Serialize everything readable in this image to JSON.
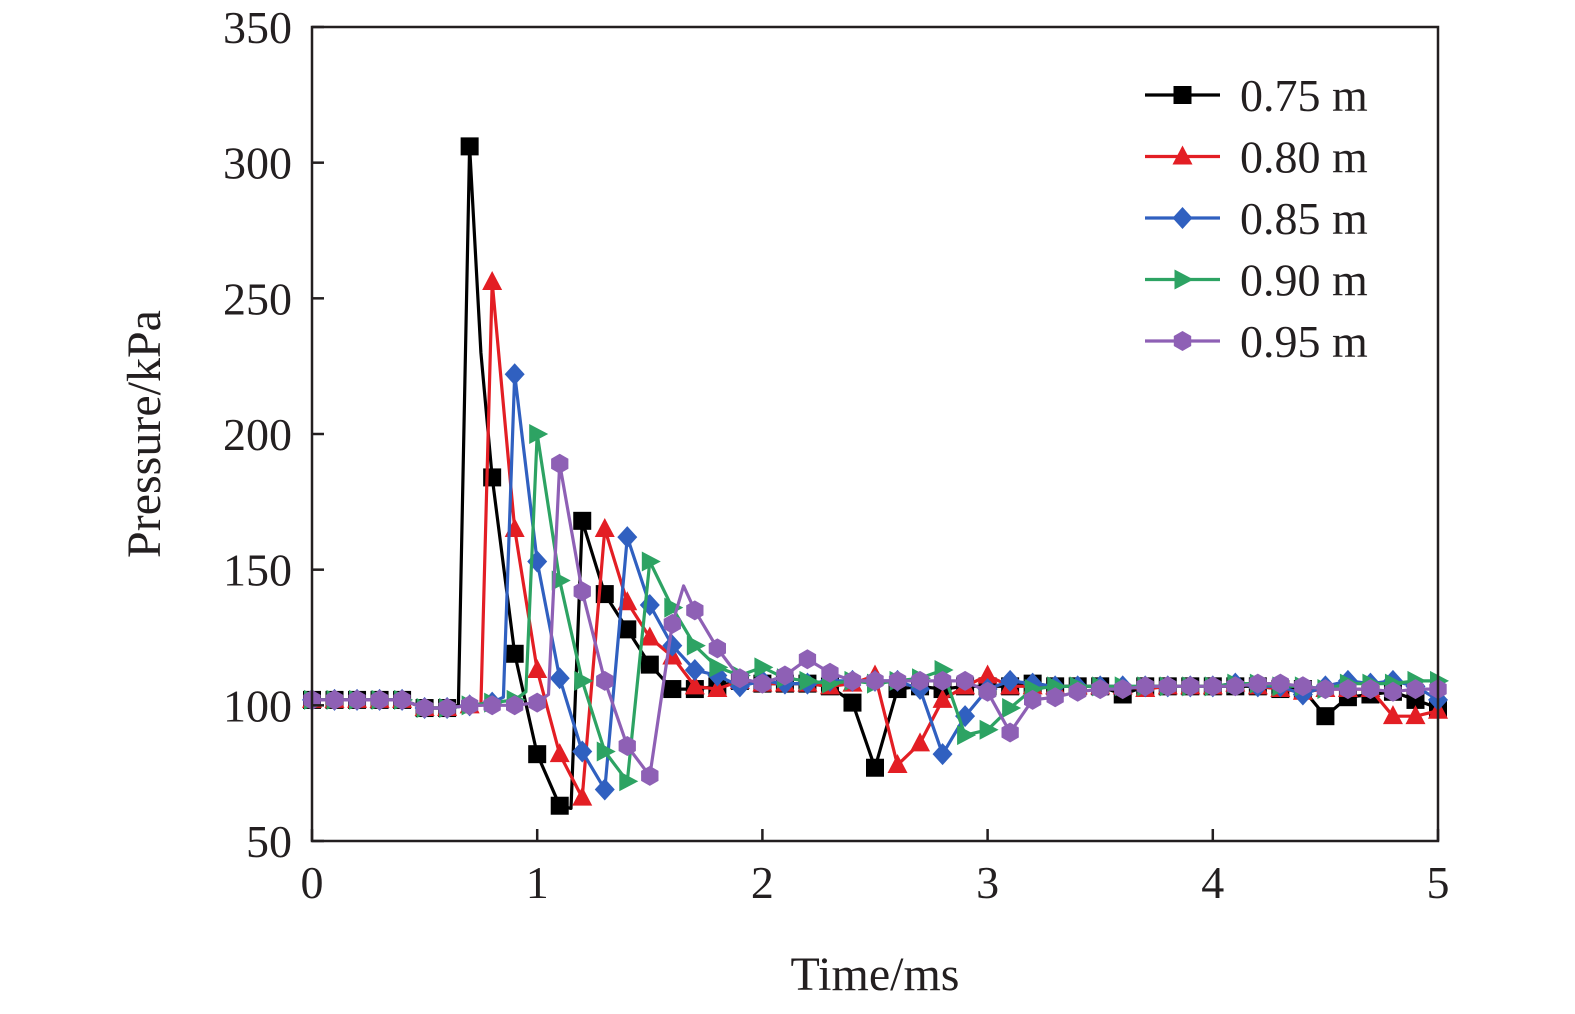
{
  "chart_data": {
    "type": "line",
    "title": "",
    "xlabel": "Time/ms",
    "ylabel": "Pressure/kPa",
    "xlim": [
      0,
      5
    ],
    "ylim": [
      50,
      350
    ],
    "xticks": [
      0,
      1,
      2,
      3,
      4,
      5
    ],
    "yticks": [
      50,
      100,
      150,
      200,
      250,
      300,
      350
    ],
    "grid": false,
    "legend_position": "top-right",
    "series": [
      {
        "name": "0.75 m",
        "color": "#000000",
        "marker": "square",
        "x": [
          0,
          0.1,
          0.2,
          0.3,
          0.4,
          0.5,
          0.6,
          0.65,
          0.7,
          0.75,
          0.8,
          0.9,
          1.0,
          1.1,
          1.15,
          1.2,
          1.3,
          1.4,
          1.5,
          1.6,
          1.7,
          1.8,
          1.9,
          2.0,
          2.1,
          2.2,
          2.3,
          2.4,
          2.5,
          2.6,
          2.7,
          2.8,
          2.9,
          3.0,
          3.1,
          3.2,
          3.3,
          3.4,
          3.5,
          3.6,
          3.7,
          3.8,
          3.9,
          4.0,
          4.1,
          4.2,
          4.3,
          4.4,
          4.5,
          4.6,
          4.7,
          4.8,
          4.9,
          5.0
        ],
        "y": [
          102,
          102,
          102,
          102,
          102,
          99,
          99,
          100,
          306,
          230,
          184,
          119,
          82,
          63,
          62,
          168,
          141,
          128,
          115,
          106,
          106,
          107,
          109,
          108,
          108,
          108,
          107,
          101,
          77,
          106,
          107,
          106,
          107,
          107,
          107,
          108,
          107,
          107,
          107,
          104,
          107,
          107,
          107,
          107,
          107,
          107,
          106,
          106,
          96,
          103,
          104,
          105,
          102,
          99
        ]
      },
      {
        "name": "0.80 m",
        "color": "#e31e24",
        "marker": "triangle-up",
        "x": [
          0,
          0.1,
          0.2,
          0.3,
          0.4,
          0.5,
          0.6,
          0.7,
          0.75,
          0.8,
          0.9,
          1.0,
          1.1,
          1.2,
          1.3,
          1.4,
          1.5,
          1.6,
          1.7,
          1.8,
          1.9,
          2.0,
          2.1,
          2.2,
          2.3,
          2.4,
          2.5,
          2.6,
          2.7,
          2.8,
          2.9,
          3.0,
          3.1,
          3.2,
          3.3,
          3.4,
          3.5,
          3.6,
          3.7,
          3.8,
          3.9,
          4.0,
          4.1,
          4.2,
          4.3,
          4.4,
          4.5,
          4.6,
          4.7,
          4.8,
          4.9,
          5.0
        ],
        "y": [
          102,
          102,
          102,
          102,
          102,
          99,
          99,
          100,
          100,
          256,
          165,
          113,
          82,
          66,
          165,
          138,
          125,
          118,
          107,
          106,
          109,
          108,
          108,
          108,
          107,
          108,
          111,
          78,
          86,
          102,
          107,
          111,
          107,
          107,
          107,
          107,
          107,
          107,
          106,
          107,
          107,
          107,
          108,
          107,
          106,
          105,
          106,
          106,
          106,
          96,
          96,
          98
        ]
      },
      {
        "name": "0.85 m",
        "color": "#3060c0",
        "marker": "diamond",
        "x": [
          0,
          0.1,
          0.2,
          0.3,
          0.4,
          0.5,
          0.6,
          0.7,
          0.8,
          0.85,
          0.9,
          1.0,
          1.1,
          1.2,
          1.3,
          1.4,
          1.5,
          1.6,
          1.7,
          1.8,
          1.9,
          2.0,
          2.1,
          2.2,
          2.3,
          2.4,
          2.5,
          2.6,
          2.7,
          2.8,
          2.9,
          3.0,
          3.1,
          3.2,
          3.3,
          3.4,
          3.5,
          3.6,
          3.7,
          3.8,
          3.9,
          4.0,
          4.1,
          4.2,
          4.3,
          4.4,
          4.5,
          4.6,
          4.7,
          4.8,
          4.9,
          5.0
        ],
        "y": [
          102,
          102,
          102,
          102,
          102,
          99,
          99,
          100,
          101,
          103,
          222,
          153,
          110,
          83,
          69,
          162,
          137,
          122,
          113,
          111,
          107,
          109,
          108,
          108,
          109,
          109,
          109,
          109,
          106,
          82,
          96,
          106,
          109,
          108,
          107,
          107,
          107,
          107,
          107,
          107,
          107,
          107,
          108,
          107,
          107,
          104,
          107,
          109,
          108,
          109,
          107,
          102
        ]
      },
      {
        "name": "0.90 m",
        "color": "#2da363",
        "marker": "triangle-right",
        "x": [
          0,
          0.1,
          0.2,
          0.3,
          0.4,
          0.5,
          0.6,
          0.7,
          0.8,
          0.9,
          0.95,
          1.0,
          1.1,
          1.2,
          1.3,
          1.4,
          1.5,
          1.6,
          1.7,
          1.8,
          1.9,
          2.0,
          2.1,
          2.2,
          2.3,
          2.4,
          2.5,
          2.6,
          2.7,
          2.8,
          2.9,
          3.0,
          3.1,
          3.2,
          3.3,
          3.4,
          3.5,
          3.6,
          3.7,
          3.8,
          3.9,
          4.0,
          4.1,
          4.2,
          4.3,
          4.4,
          4.5,
          4.6,
          4.7,
          4.8,
          4.9,
          5.0
        ],
        "y": [
          102,
          102,
          102,
          102,
          102,
          99,
          99,
          100,
          101,
          102,
          105,
          200,
          146,
          109,
          83,
          72,
          153,
          136,
          122,
          114,
          111,
          114,
          110,
          109,
          108,
          109,
          108,
          109,
          110,
          113,
          89,
          91,
          99,
          106,
          107,
          107,
          107,
          107,
          107,
          107,
          107,
          107,
          108,
          108,
          107,
          107,
          106,
          108,
          108,
          108,
          109,
          109
        ]
      },
      {
        "name": "0.95 m",
        "color": "#8e60b5",
        "marker": "hexagon",
        "x": [
          0,
          0.1,
          0.2,
          0.3,
          0.4,
          0.5,
          0.6,
          0.7,
          0.8,
          0.9,
          1.0,
          1.05,
          1.1,
          1.2,
          1.3,
          1.4,
          1.5,
          1.6,
          1.65,
          1.7,
          1.8,
          1.9,
          2.0,
          2.1,
          2.2,
          2.3,
          2.4,
          2.5,
          2.6,
          2.7,
          2.8,
          2.9,
          3.0,
          3.1,
          3.2,
          3.3,
          3.4,
          3.5,
          3.6,
          3.7,
          3.8,
          3.9,
          4.0,
          4.1,
          4.2,
          4.3,
          4.4,
          4.5,
          4.6,
          4.7,
          4.8,
          4.9,
          5.0
        ],
        "y": [
          102,
          102,
          102,
          102,
          102,
          99,
          99,
          100,
          100,
          100,
          101,
          104,
          189,
          142,
          109,
          85,
          74,
          130,
          144,
          135,
          121,
          110,
          108,
          111,
          117,
          112,
          109,
          109,
          109,
          109,
          109,
          109,
          105,
          90,
          102,
          103,
          105,
          106,
          106,
          107,
          107,
          107,
          107,
          107,
          108,
          108,
          107,
          106,
          106,
          106,
          105,
          106,
          106
        ]
      }
    ]
  }
}
